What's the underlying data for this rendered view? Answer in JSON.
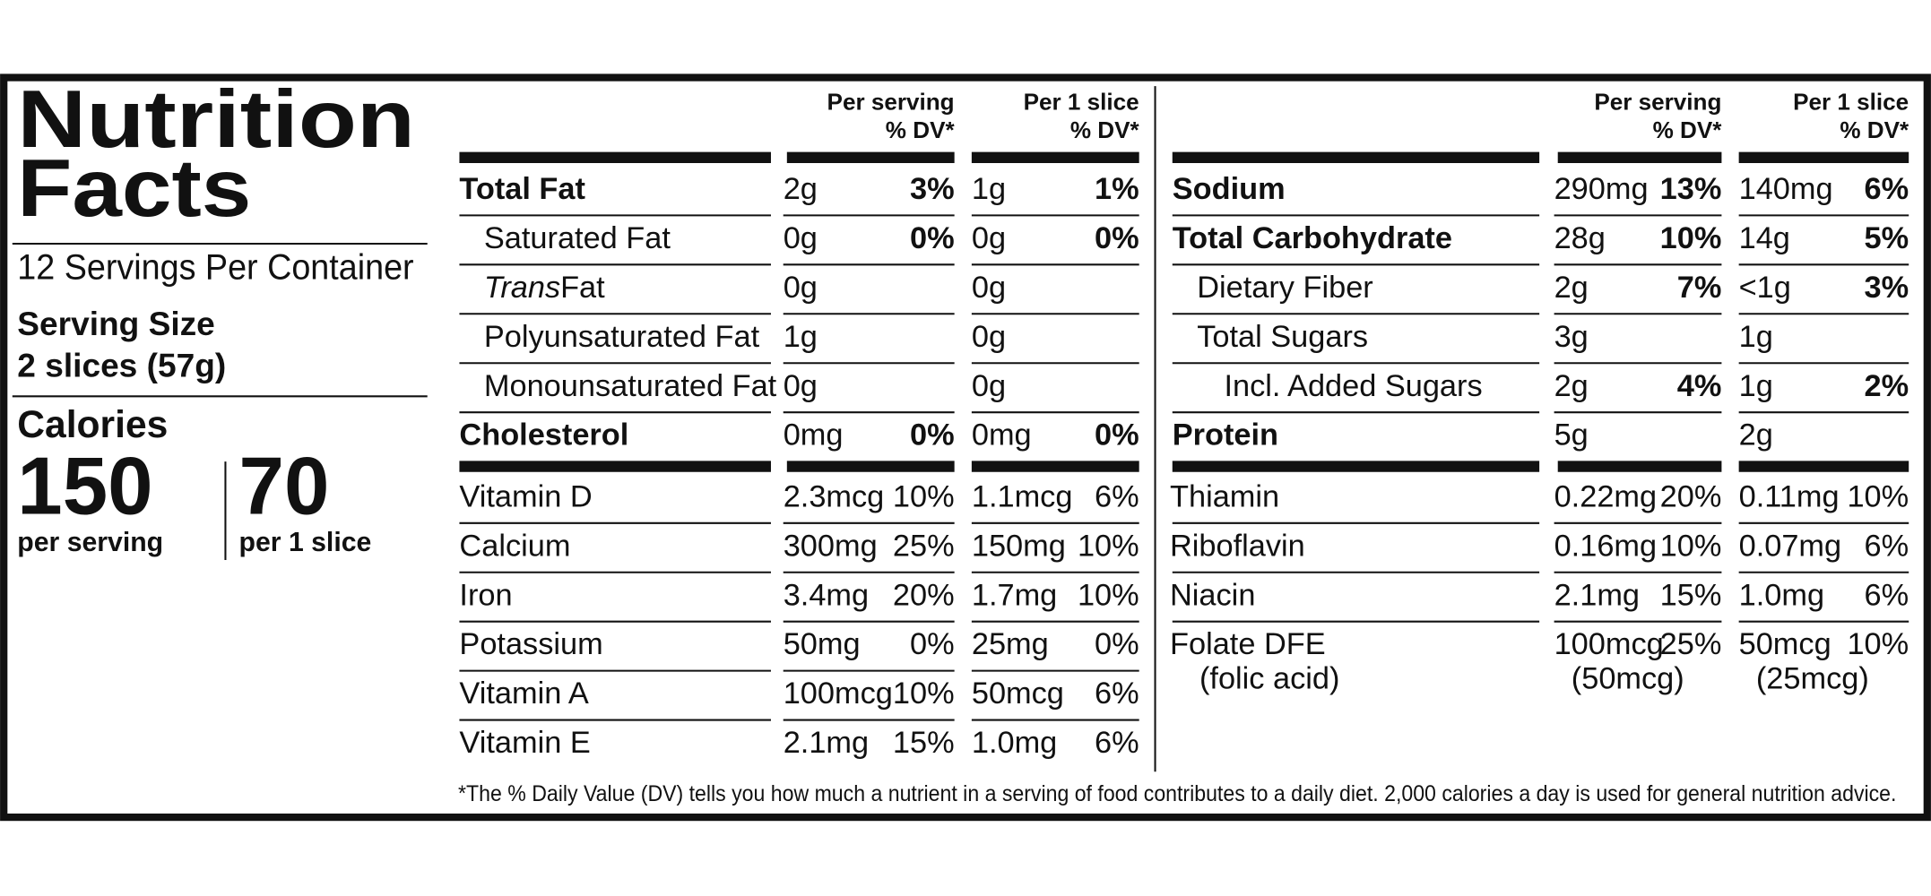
{
  "title_lines": [
    "Nutrition",
    "Facts"
  ],
  "servings": "12 Servings Per Container",
  "serving_size_label": "Serving Size",
  "serving_size": "2 slices (57g)",
  "calories_label": "Calories",
  "calories": [
    {
      "amount": "150",
      "basis": "per serving"
    },
    {
      "amount": "70",
      "basis": "per 1 slice"
    }
  ],
  "tables": [
    {
      "columns": [
        {
          "title": "Per serving",
          "dv": "% DV*"
        },
        {
          "title": "Per 1 slice",
          "dv": "% DV*"
        }
      ],
      "nutrients": [
        {
          "name": "Total Fat",
          "bold": true,
          "indent": 0,
          "serving": [
            "2g",
            "3%"
          ],
          "slice": [
            "1g",
            "1%"
          ]
        },
        {
          "name": "Saturated Fat",
          "bold": false,
          "indent": 1,
          "serving": [
            "0g",
            "0%"
          ],
          "slice": [
            "0g",
            "0%"
          ]
        },
        {
          "name_italic": "Trans",
          "name": "Fat",
          "bold": false,
          "indent": 1,
          "serving": [
            "0g"
          ],
          "slice": [
            "0g"
          ]
        },
        {
          "name": "Polyunsaturated Fat",
          "bold": false,
          "indent": 1,
          "serving": [
            "1g"
          ],
          "slice": [
            "0g"
          ]
        },
        {
          "name": "Monounsaturated Fat",
          "bold": false,
          "indent": 1,
          "serving": [
            "0g"
          ],
          "slice": [
            "0g"
          ]
        },
        {
          "name": "Cholesterol",
          "bold": true,
          "indent": 0,
          "serving": [
            "0mg",
            "0%"
          ],
          "slice": [
            "0mg",
            "0%"
          ]
        }
      ],
      "vitamins": [
        {
          "name": "Vitamin D",
          "serving": [
            "2.3mcg",
            "10%"
          ],
          "slice": [
            "1.1mcg",
            "6%"
          ]
        },
        {
          "name": "Calcium",
          "serving": [
            "300mg",
            "25%"
          ],
          "slice": [
            "150mg",
            "10%"
          ]
        },
        {
          "name": "Iron",
          "serving": [
            "3.4mg",
            "20%"
          ],
          "slice": [
            "1.7mg",
            "10%"
          ]
        },
        {
          "name": "Potassium",
          "serving": [
            "50mg",
            "0%"
          ],
          "slice": [
            "25mg",
            "0%"
          ]
        },
        {
          "name": "Vitamin A",
          "serving": [
            "100mcg",
            "10%"
          ],
          "slice": [
            "50mcg",
            "6%"
          ]
        },
        {
          "name": "Vitamin E",
          "serving": [
            "2.1mg",
            "15%"
          ],
          "slice": [
            "1.0mg",
            "6%"
          ]
        }
      ]
    },
    {
      "columns": [
        {
          "title": "Per serving",
          "dv": "% DV*"
        },
        {
          "title": "Per 1 slice",
          "dv": "% DV*"
        }
      ],
      "nutrients": [
        {
          "name": "Sodium",
          "bold": true,
          "indent": 0,
          "serving": [
            "290mg",
            "13%"
          ],
          "slice": [
            "140mg",
            "6%"
          ]
        },
        {
          "name": "Total Carbohydrate",
          "bold": true,
          "indent": 0,
          "serving": [
            "28g",
            "10%"
          ],
          "slice": [
            "14g",
            "5%"
          ]
        },
        {
          "name": "Dietary Fiber",
          "bold": false,
          "indent": 1,
          "serving": [
            "2g",
            "7%"
          ],
          "slice": [
            "<1g",
            "3%"
          ]
        },
        {
          "name": "Total Sugars",
          "bold": false,
          "indent": 1,
          "serving": [
            "3g"
          ],
          "slice": [
            "1g"
          ]
        },
        {
          "name": "Incl. Added Sugars",
          "bold": false,
          "indent": 2,
          "serving": [
            "2g",
            "4%"
          ],
          "slice": [
            "1g",
            "2%"
          ]
        },
        {
          "name": "Protein",
          "bold": true,
          "indent": 0,
          "serving": [
            "5g"
          ],
          "slice": [
            "2g"
          ]
        }
      ],
      "vitamins": [
        {
          "name": "Thiamin",
          "serving": [
            "0.22mg",
            "20%"
          ],
          "slice": [
            "0.11mg",
            "10%"
          ]
        },
        {
          "name": "Riboflavin",
          "serving": [
            "0.16mg",
            "10%"
          ],
          "slice": [
            "0.07mg",
            "6%"
          ]
        },
        {
          "name": "Niacin",
          "serving": [
            "2.1mg",
            "15%"
          ],
          "slice": [
            "1.0mg",
            "6%"
          ]
        },
        {
          "name": "Folate DFE",
          "note": "(folic acid)",
          "serving": [
            "100mcg",
            "25%"
          ],
          "serving_note": "(50mcg)",
          "slice": [
            "50mcg",
            "10%"
          ],
          "slice_note": "(25mcg)"
        }
      ]
    }
  ],
  "footnote": "*The % Daily Value (DV) tells you how much a nutrient in a serving of food contributes to a daily diet. 2,000 calories a day is used for general nutrition advice."
}
